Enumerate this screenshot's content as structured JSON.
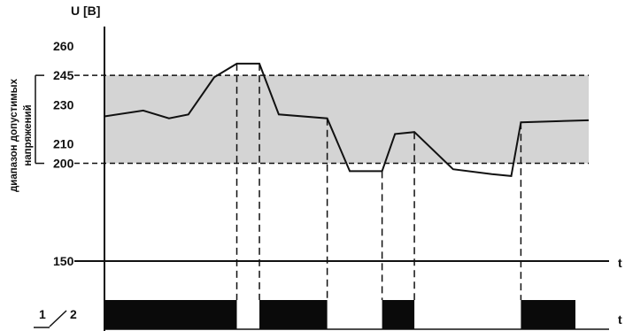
{
  "chart_data": {
    "type": "line",
    "ylabel": "U [B]",
    "xlabel": "t",
    "output_label": "t",
    "relay_label_a": "1",
    "relay_label_b": "2",
    "side_label_line1": "диапазон допустимых",
    "side_label_line2": "напряжений",
    "y_ticks": [
      150,
      200,
      210,
      230,
      245,
      260
    ],
    "permissible_range": {
      "min": 200,
      "max": 245
    },
    "voltage_series": {
      "x": [
        0,
        6,
        10,
        13,
        17,
        20.5,
        24,
        27,
        34.5,
        38,
        43,
        45,
        48,
        54,
        60,
        63,
        64.5,
        75
      ],
      "y": [
        224,
        227,
        223,
        225,
        244,
        251,
        251,
        225,
        223,
        196,
        196,
        215,
        216,
        197,
        194.5,
        193.5,
        221,
        222
      ]
    },
    "switch_points_x": [
      20.5,
      24,
      34.5,
      43,
      48,
      64.5
    ],
    "output_on_intervals": [
      [
        0,
        20.5
      ],
      [
        24,
        34.5
      ],
      [
        43,
        48
      ],
      [
        64.5,
        75
      ]
    ],
    "x_range": [
      0,
      75
    ]
  },
  "colors": {
    "band": "#d4d4d4",
    "line": "#111111",
    "bar": "#0a0a0a"
  }
}
